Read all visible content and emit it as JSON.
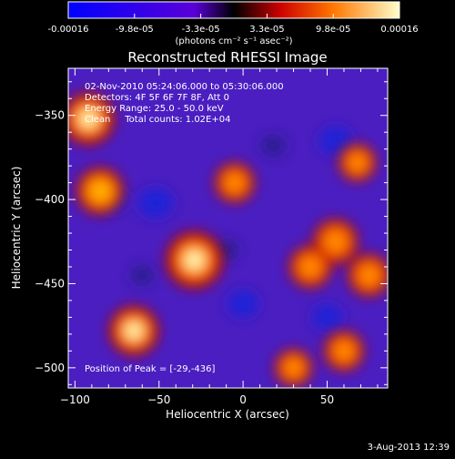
{
  "colorbar": {
    "tick_labels": [
      "-0.00016",
      "-9.8e-05",
      "-3.3e-05",
      "3.3e-05",
      "9.8e-05",
      "0.00016"
    ],
    "units_label": "(photons cm⁻² s⁻¹ asec⁻²)",
    "stops": [
      {
        "offset": 0.0,
        "color": "#0000ff"
      },
      {
        "offset": 0.38,
        "color": "#5a00d8"
      },
      {
        "offset": 0.5,
        "color": "#000000"
      },
      {
        "offset": 0.64,
        "color": "#cc0000"
      },
      {
        "offset": 0.8,
        "color": "#ff7700"
      },
      {
        "offset": 1.0,
        "color": "#ffffcc"
      }
    ]
  },
  "chart_data": {
    "type": "heatmap",
    "title": "Reconstructed RHESSI Image",
    "xlabel": "Heliocentric X (arcsec)",
    "ylabel": "Heliocentric Y (arcsec)",
    "xlim": [
      -104,
      86
    ],
    "ylim": [
      -512,
      -322
    ],
    "x_ticks": [
      -100,
      -50,
      0,
      50
    ],
    "y_ticks": [
      -350,
      -400,
      -450,
      -500
    ],
    "info_lines": [
      "02-Nov-2010 05:24:06.000 to 05:30:06.000",
      "Detectors: 4F 5F 6F 7F 8F, Att 0",
      "Energy Range: 25.0 - 50.0 keV",
      "Clean     Total counts: 1.02E+04"
    ],
    "peak_text": "Position of Peak = [-29,-436]",
    "color_range": [
      -0.00016,
      0.00016
    ],
    "bright_sources": [
      {
        "x": -29,
        "y": -436,
        "value": 0.00016
      },
      {
        "x": -92,
        "y": -352,
        "value": 0.00014
      },
      {
        "x": -85,
        "y": -395,
        "value": 0.00012
      },
      {
        "x": -65,
        "y": -478,
        "value": 0.00013
      },
      {
        "x": 55,
        "y": -425,
        "value": 0.00011
      },
      {
        "x": 40,
        "y": -440,
        "value": 0.0001
      },
      {
        "x": 75,
        "y": -445,
        "value": 0.0001
      },
      {
        "x": -5,
        "y": -390,
        "value": 9e-05
      },
      {
        "x": 30,
        "y": -500,
        "value": 8e-05
      },
      {
        "x": 68,
        "y": -378,
        "value": 8e-05
      },
      {
        "x": 60,
        "y": -490,
        "value": 9e-05
      }
    ],
    "dark_sources": [
      {
        "x": -52,
        "y": -402,
        "value": -0.00012
      },
      {
        "x": -78,
        "y": -400,
        "value": -0.0001
      },
      {
        "x": 55,
        "y": -365,
        "value": -0.00011
      },
      {
        "x": 0,
        "y": -462,
        "value": -0.0001
      },
      {
        "x": 50,
        "y": -470,
        "value": -9e-05
      },
      {
        "x": -10,
        "y": -430,
        "value": -6e-05
      },
      {
        "x": 18,
        "y": -368,
        "value": -6e-05
      },
      {
        "x": -60,
        "y": -445,
        "value": -5e-05
      }
    ]
  },
  "footer": {
    "timestamp": "3-Aug-2013 12:39"
  }
}
